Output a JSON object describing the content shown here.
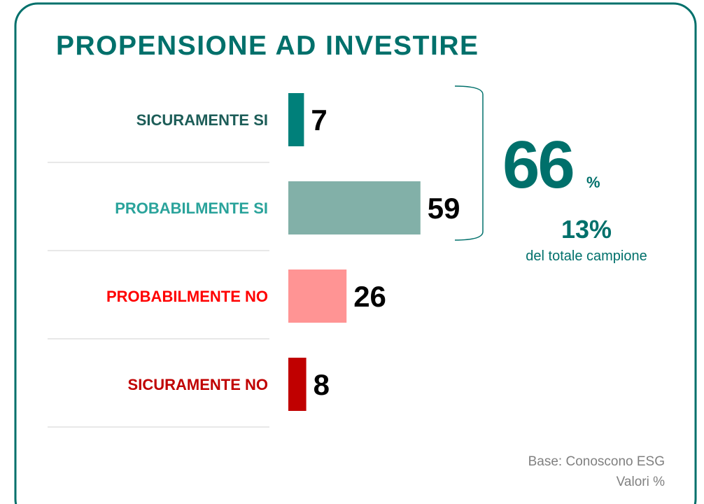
{
  "chart_data": {
    "type": "hbar",
    "title": "PROPENSIONE AD INVESTIRE",
    "categories": [
      "SICURAMENTE SI",
      "PROBABILMENTE SI",
      "PROBABILMENTE NO",
      "SICURAMENTE NO"
    ],
    "values": [
      7,
      59,
      26,
      8
    ],
    "colors": [
      "#00807a",
      "#82b0a8",
      "#ff9494",
      "#c00000"
    ],
    "label_colors": [
      "#1d5d58",
      "#2aa39b",
      "#ff0000",
      "#c00000"
    ],
    "annotations": [
      "66",
      "%",
      "13%",
      "del totale campione"
    ],
    "footnotes": [
      "Base: Conoscono ESG",
      "Valori %"
    ]
  }
}
